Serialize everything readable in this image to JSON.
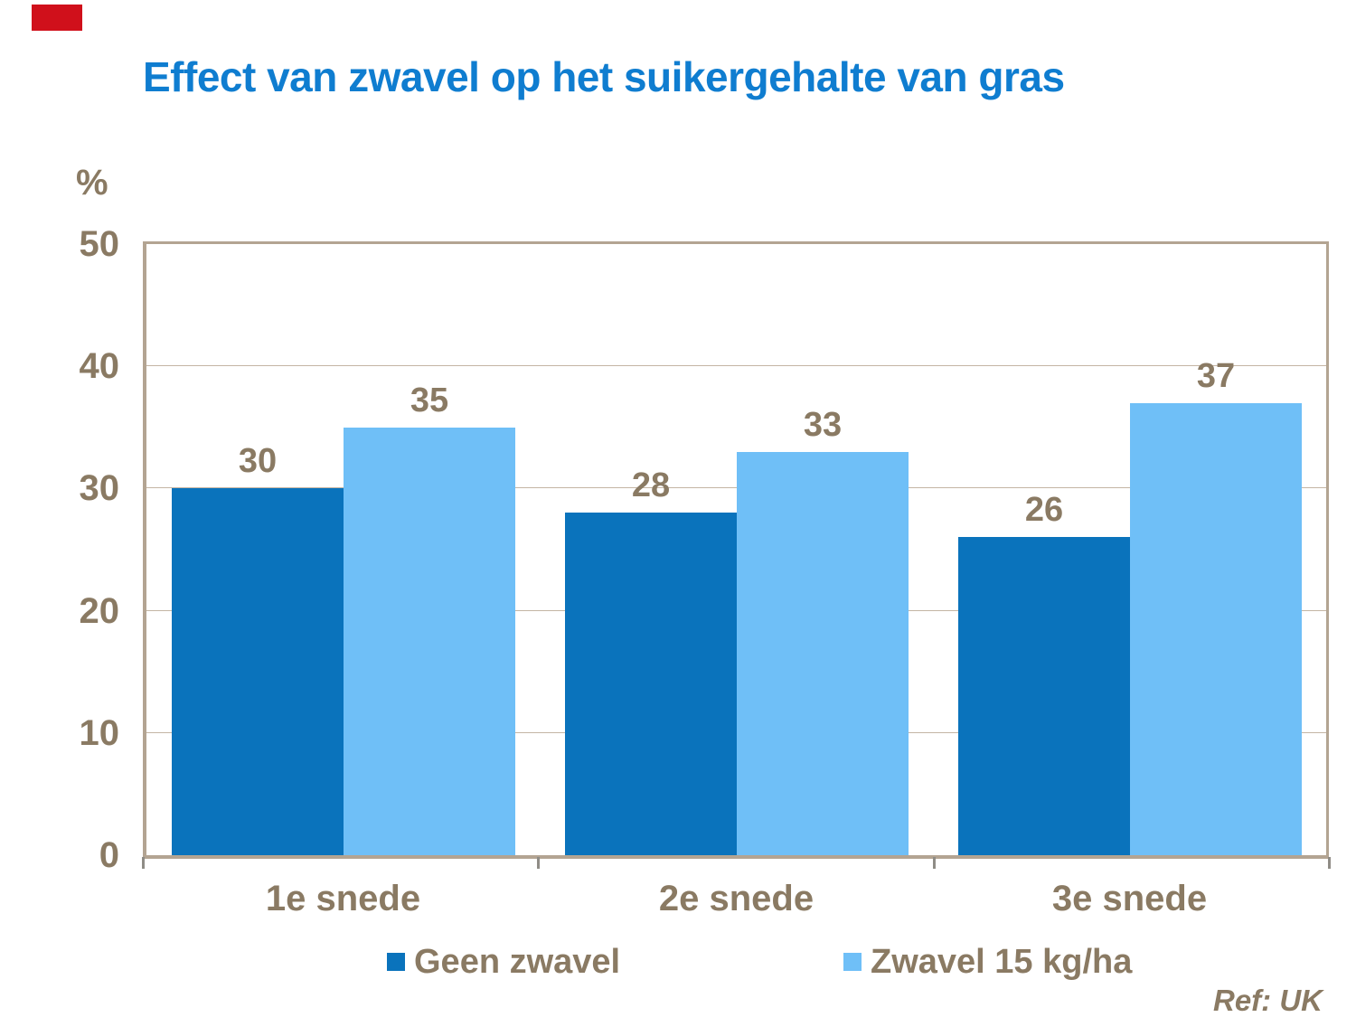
{
  "title": "Effect van zwavel op het suikergehalte van gras",
  "ref_note": "Ref: UK",
  "colors": {
    "title": "#0F7DD0",
    "text_brown": "#8A7A63",
    "series1": "#0A73BC",
    "series2": "#6FBFF7",
    "plot_border": "#B3A492",
    "gridline": "#C4B5A4",
    "corner_mark": "#D0101B"
  },
  "chart_data": {
    "type": "bar",
    "title": "Effect van zwavel op het suikergehalte van gras",
    "xlabel": "",
    "ylabel": "%",
    "categories": [
      "1e snede",
      "2e snede",
      "3e snede"
    ],
    "series": [
      {
        "name": "Geen zwavel",
        "color": "#0A73BC",
        "values": [
          30,
          28,
          26
        ]
      },
      {
        "name": "Zwavel 15 kg/ha",
        "color": "#6FBFF7",
        "values": [
          35,
          33,
          37
        ]
      }
    ],
    "ylim": [
      0,
      50
    ],
    "yticks": [
      0,
      10,
      20,
      30,
      40,
      50
    ],
    "grid": true,
    "data_labels": true,
    "legend_position": "bottom"
  }
}
